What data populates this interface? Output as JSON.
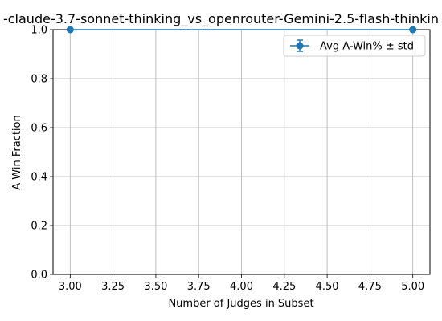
{
  "chart_data": {
    "type": "line",
    "title": "-claude-3.7-sonnet-thinking_vs_openrouter-Gemini-2.5-flash-thinkin",
    "xlabel": "Number of Judges in Subset",
    "ylabel": "A Win Fraction",
    "xlim": [
      2.9,
      5.1
    ],
    "ylim": [
      0.0,
      1.0
    ],
    "x_ticks": [
      3.0,
      3.25,
      3.5,
      3.75,
      4.0,
      4.25,
      4.5,
      4.75,
      5.0
    ],
    "x_tick_labels": [
      "3.00",
      "3.25",
      "3.50",
      "3.75",
      "4.00",
      "4.25",
      "4.50",
      "4.75",
      "5.00"
    ],
    "y_ticks": [
      0.0,
      0.2,
      0.4,
      0.6,
      0.8,
      1.0
    ],
    "y_tick_labels": [
      "0.0",
      "0.2",
      "0.4",
      "0.6",
      "0.8",
      "1.0"
    ],
    "grid": true,
    "legend_position": "top-right",
    "series": [
      {
        "name": "Avg A-Win% ± std",
        "color": "#1f77b4",
        "x": [
          3.0,
          5.0
        ],
        "y": [
          1.0,
          1.0
        ],
        "std": [
          0.0,
          0.0
        ]
      }
    ]
  }
}
